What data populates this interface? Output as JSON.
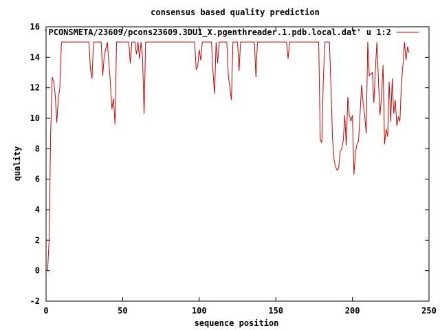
{
  "chart_data": {
    "type": "line",
    "title": "consensus based quality prediction",
    "xlabel": "sequence position",
    "ylabel": "quality",
    "xlim": [
      0,
      250
    ],
    "ylim": [
      -2,
      16
    ],
    "xticks": [
      0,
      50,
      100,
      150,
      200,
      250
    ],
    "yticks": [
      -2,
      0,
      2,
      4,
      6,
      8,
      10,
      12,
      14,
      16
    ],
    "grid": false,
    "legend_position": "top-right",
    "series": [
      {
        "name": "'PCONSMETA/23609/pcons23609.3DU1_X.pgenthreader.1.pdb.local.dat' u 1:2",
        "color": "#cc0000",
        "points": [
          [
            0,
            0
          ],
          [
            1,
            0
          ],
          [
            2,
            2
          ],
          [
            3,
            9
          ],
          [
            4,
            12.7
          ],
          [
            5,
            12.4
          ],
          [
            6,
            11.5
          ],
          [
            7,
            9.7
          ],
          [
            8,
            11.3
          ],
          [
            9,
            12.0
          ],
          [
            10,
            15
          ],
          [
            28,
            15
          ],
          [
            29,
            13.2
          ],
          [
            30,
            12.6
          ],
          [
            31,
            15
          ],
          [
            36,
            15
          ],
          [
            37,
            12.8
          ],
          [
            38,
            14.1
          ],
          [
            40,
            15
          ],
          [
            42,
            12.3
          ],
          [
            43,
            10.6
          ],
          [
            44,
            11.3
          ],
          [
            45,
            9.6
          ],
          [
            46,
            15
          ],
          [
            54,
            15
          ],
          [
            55,
            13.6
          ],
          [
            56,
            15
          ],
          [
            58,
            15
          ],
          [
            59,
            14.2
          ],
          [
            60,
            15
          ],
          [
            61,
            13.9
          ],
          [
            62,
            15
          ],
          [
            63,
            14.0
          ],
          [
            64,
            10.3
          ],
          [
            65,
            15
          ],
          [
            97,
            15
          ],
          [
            98,
            13.2
          ],
          [
            99,
            13.4
          ],
          [
            100,
            14.5
          ],
          [
            101,
            13.8
          ],
          [
            102,
            15
          ],
          [
            108,
            15
          ],
          [
            109,
            13.0
          ],
          [
            110,
            11.6
          ],
          [
            111,
            15
          ],
          [
            112,
            13.6
          ],
          [
            113,
            15
          ],
          [
            118,
            15
          ],
          [
            119,
            12.8
          ],
          [
            120,
            12.0
          ],
          [
            121,
            11.2
          ],
          [
            122,
            15
          ],
          [
            125,
            15
          ],
          [
            126,
            13.1
          ],
          [
            127,
            15
          ],
          [
            136,
            15
          ],
          [
            137,
            12.7
          ],
          [
            138,
            15
          ],
          [
            157,
            15
          ],
          [
            158,
            13.9
          ],
          [
            159,
            15
          ],
          [
            178,
            15
          ],
          [
            179,
            8.6
          ],
          [
            180,
            8.4
          ],
          [
            181,
            12.5
          ],
          [
            182,
            15
          ],
          [
            185,
            15
          ],
          [
            186,
            12.0
          ],
          [
            187,
            8.7
          ],
          [
            188,
            7.3
          ],
          [
            189,
            6.8
          ],
          [
            190,
            6.6
          ],
          [
            191,
            6.7
          ],
          [
            192,
            7.8
          ],
          [
            193,
            8.0
          ],
          [
            194,
            8.5
          ],
          [
            195,
            10.2
          ],
          [
            196,
            8.2
          ],
          [
            197,
            11.4
          ],
          [
            198,
            10.2
          ],
          [
            199,
            9.8
          ],
          [
            200,
            10.2
          ],
          [
            201,
            6.3
          ],
          [
            202,
            7.8
          ],
          [
            203,
            8.3
          ],
          [
            204,
            8.5
          ],
          [
            205,
            10.3
          ],
          [
            206,
            12.2
          ],
          [
            207,
            11.0
          ],
          [
            208,
            10.2
          ],
          [
            209,
            9.0
          ],
          [
            210,
            15
          ],
          [
            211,
            12.8
          ],
          [
            212,
            12.9
          ],
          [
            213,
            13.0
          ],
          [
            214,
            11.0
          ],
          [
            215,
            13.2
          ],
          [
            216,
            15
          ],
          [
            217,
            12.5
          ],
          [
            218,
            10.2
          ],
          [
            219,
            11.4
          ],
          [
            220,
            13.5
          ],
          [
            221,
            8.3
          ],
          [
            222,
            9.3
          ],
          [
            223,
            8.8
          ],
          [
            224,
            12.4
          ],
          [
            225,
            9.8
          ],
          [
            226,
            12.6
          ],
          [
            227,
            10.3
          ],
          [
            228,
            11.2
          ],
          [
            229,
            9.5
          ],
          [
            230,
            10.1
          ],
          [
            231,
            9.8
          ],
          [
            232,
            12.3
          ],
          [
            233,
            13.5
          ],
          [
            234,
            15
          ],
          [
            235,
            13.8
          ],
          [
            236,
            14.7
          ],
          [
            237,
            14.3
          ]
        ]
      }
    ]
  }
}
